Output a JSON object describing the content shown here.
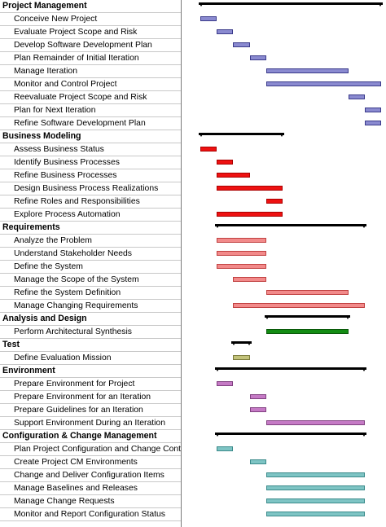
{
  "colors": {
    "purple_blue": {
      "fill": "#8a8ad0",
      "border": "#3a3a8a"
    },
    "red": {
      "fill": "#ee1111",
      "border": "#aa0000"
    },
    "salmon": {
      "fill": "#f28a8a",
      "border": "#c04040"
    },
    "green": {
      "fill": "#138c13",
      "border": "#0a5a0a"
    },
    "olive": {
      "fill": "#c2c27a",
      "border": "#7a7a3a"
    },
    "orchid": {
      "fill": "#c57ac5",
      "border": "#804080"
    },
    "teal": {
      "fill": "#7ec4c4",
      "border": "#3a8a8a"
    }
  },
  "rows": [
    {
      "type": "phase",
      "label": "Project Management",
      "start": 0,
      "end": 11.2
    },
    {
      "type": "task",
      "label": "Conceive New Project",
      "start": 0.1,
      "end": 1.1,
      "color": "purple_blue"
    },
    {
      "type": "task",
      "label": "Evaluate Project Scope and Risk",
      "start": 1.1,
      "end": 2.1,
      "color": "purple_blue"
    },
    {
      "type": "task",
      "label": "Develop Software Development Plan",
      "start": 2.1,
      "end": 3.1,
      "color": "purple_blue"
    },
    {
      "type": "task",
      "label": "Plan Remainder of Initial Iteration",
      "start": 3.1,
      "end": 4.1,
      "color": "purple_blue"
    },
    {
      "type": "task",
      "label": "Manage Iteration",
      "start": 4.1,
      "end": 9.1,
      "color": "purple_blue"
    },
    {
      "type": "task",
      "label": "Monitor and Control Project",
      "start": 4.1,
      "end": 11.1,
      "color": "purple_blue"
    },
    {
      "type": "task",
      "label": "Reevaluate Project Scope and Risk",
      "start": 9.1,
      "end": 10.1,
      "color": "purple_blue"
    },
    {
      "type": "task",
      "label": "Plan for Next Iteration",
      "start": 10.1,
      "end": 11.1,
      "color": "purple_blue"
    },
    {
      "type": "task",
      "label": "Refine Software Development Plan",
      "start": 10.1,
      "end": 11.1,
      "color": "purple_blue"
    },
    {
      "type": "phase",
      "label": "Business Modeling",
      "start": 0,
      "end": 5.2
    },
    {
      "type": "task",
      "label": "Assess Business Status",
      "start": 0.1,
      "end": 1.1,
      "color": "red"
    },
    {
      "type": "task",
      "label": "Identify Business Processes",
      "start": 1.1,
      "end": 2.1,
      "color": "red"
    },
    {
      "type": "task",
      "label": "Refine Business Processes",
      "start": 1.1,
      "end": 3.1,
      "color": "red"
    },
    {
      "type": "task",
      "label": "Design Business Process Realizations",
      "start": 1.1,
      "end": 5.1,
      "color": "red"
    },
    {
      "type": "task",
      "label": "Refine Roles and Responsibilities",
      "start": 4.1,
      "end": 5.1,
      "color": "red"
    },
    {
      "type": "task",
      "label": "Explore Process Automation",
      "start": 1.1,
      "end": 5.1,
      "color": "red"
    },
    {
      "type": "phase",
      "label": "Requirements",
      "start": 1,
      "end": 10.2
    },
    {
      "type": "task",
      "label": "Analyze the Problem",
      "start": 1.1,
      "end": 4.1,
      "color": "salmon"
    },
    {
      "type": "task",
      "label": "Understand Stakeholder Needs",
      "start": 1.1,
      "end": 4.1,
      "color": "salmon"
    },
    {
      "type": "task",
      "label": "Define the System",
      "start": 1.1,
      "end": 4.1,
      "color": "salmon"
    },
    {
      "type": "task",
      "label": "Manage the Scope of the System",
      "start": 2.1,
      "end": 4.1,
      "color": "salmon"
    },
    {
      "type": "task",
      "label": "Refine the System Definition",
      "start": 4.1,
      "end": 9.1,
      "color": "salmon"
    },
    {
      "type": "task",
      "label": "Manage Changing Requirements",
      "start": 2.1,
      "end": 10.1,
      "color": "salmon"
    },
    {
      "type": "phase",
      "label": "Analysis and Design",
      "start": 4,
      "end": 9.2
    },
    {
      "type": "task",
      "label": "Perform Architectural Synthesis",
      "start": 4.1,
      "end": 9.1,
      "color": "green"
    },
    {
      "type": "phase",
      "label": "Test",
      "start": 2,
      "end": 3.2
    },
    {
      "type": "task",
      "label": "Define Evaluation Mission",
      "start": 2.1,
      "end": 3.1,
      "color": "olive"
    },
    {
      "type": "phase",
      "label": "Environment",
      "start": 1,
      "end": 10.2
    },
    {
      "type": "task",
      "label": "Prepare Environment for Project",
      "start": 1.1,
      "end": 2.1,
      "color": "orchid"
    },
    {
      "type": "task",
      "label": "Prepare Environment for an Iteration",
      "start": 3.1,
      "end": 4.1,
      "color": "orchid"
    },
    {
      "type": "task",
      "label": "Prepare Guidelines for an Iteration",
      "start": 3.1,
      "end": 4.1,
      "color": "orchid"
    },
    {
      "type": "task",
      "label": "Support Environment During an Iteration",
      "start": 4.1,
      "end": 10.1,
      "color": "orchid"
    },
    {
      "type": "phase",
      "label": "Configuration & Change Management",
      "start": 1,
      "end": 10.2
    },
    {
      "type": "task",
      "label": "Plan Project Configuration and Change Control",
      "start": 1.1,
      "end": 2.1,
      "color": "teal"
    },
    {
      "type": "task",
      "label": "Create Project CM Environments",
      "start": 3.1,
      "end": 4.1,
      "color": "teal"
    },
    {
      "type": "task",
      "label": "Change and Deliver Configuration Items",
      "start": 4.1,
      "end": 10.1,
      "color": "teal"
    },
    {
      "type": "task",
      "label": "Manage Baselines and Releases",
      "start": 4.1,
      "end": 10.1,
      "color": "teal"
    },
    {
      "type": "task",
      "label": "Manage Change Requests",
      "start": 4.1,
      "end": 10.1,
      "color": "teal"
    },
    {
      "type": "task",
      "label": "Monitor and Report Configuration Status",
      "start": 4.1,
      "end": 10.1,
      "color": "teal"
    }
  ]
}
